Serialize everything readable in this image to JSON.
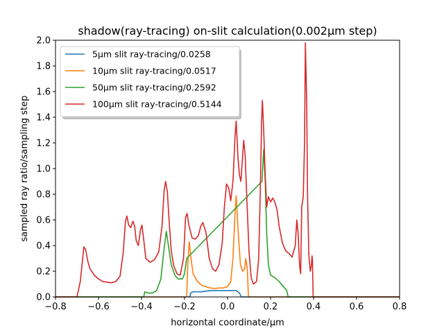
{
  "chart_data": {
    "type": "line",
    "title": "shadow(ray-tracing) on-slit calculation(0.002μm step)",
    "xlabel": "horizontal coordinate/μm",
    "ylabel": "sampled ray ratio/sampling step",
    "xlim": [
      -0.8,
      0.8
    ],
    "ylim": [
      0.0,
      2.0
    ],
    "xticks": [
      "−0.8",
      "−0.6",
      "−0.4",
      "−0.2",
      "0.0",
      "0.2",
      "0.4",
      "0.6",
      "0.8"
    ],
    "yticks": [
      "0.0",
      "0.2",
      "0.4",
      "0.6",
      "0.8",
      "1.0",
      "1.2",
      "1.4",
      "1.6",
      "1.8",
      "2.0"
    ],
    "grid": false,
    "legend_position": "upper-left",
    "series": [
      {
        "name": "5μm slit ray-tracing/0.0258",
        "color": "#1f77b4",
        "points": [
          [
            -0.8,
            0
          ],
          [
            -0.175,
            0
          ],
          [
            -0.172,
            0.03
          ],
          [
            -0.16,
            0.04
          ],
          [
            -0.12,
            0.04
          ],
          [
            -0.08,
            0.05
          ],
          [
            -0.04,
            0.05
          ],
          [
            0.0,
            0.05
          ],
          [
            0.03,
            0.05
          ],
          [
            0.04,
            0.05
          ],
          [
            0.055,
            0.03
          ],
          [
            0.065,
            0.0
          ],
          [
            0.8,
            0
          ]
        ]
      },
      {
        "name": "10μm slit ray-tracing/0.0517",
        "color": "#ff7f0e",
        "points": [
          [
            -0.8,
            0
          ],
          [
            -0.19,
            0
          ],
          [
            -0.185,
            0.25
          ],
          [
            -0.178,
            0.43
          ],
          [
            -0.17,
            0.3
          ],
          [
            -0.16,
            0.18
          ],
          [
            -0.14,
            0.12
          ],
          [
            -0.12,
            0.09
          ],
          [
            -0.1,
            0.08
          ],
          [
            -0.08,
            0.07
          ],
          [
            -0.06,
            0.065
          ],
          [
            -0.04,
            0.07
          ],
          [
            -0.02,
            0.07
          ],
          [
            0.0,
            0.08
          ],
          [
            0.015,
            0.12
          ],
          [
            0.025,
            0.3
          ],
          [
            0.035,
            0.65
          ],
          [
            0.04,
            0.79
          ],
          [
            0.05,
            0.5
          ],
          [
            0.06,
            0.25
          ],
          [
            0.07,
            0.2
          ],
          [
            0.08,
            0.22
          ],
          [
            0.085,
            0.3
          ],
          [
            0.092,
            0.22
          ],
          [
            0.097,
            0.0
          ],
          [
            0.8,
            0
          ]
        ]
      },
      {
        "name": "50μm slit ray-tracing/0.2592",
        "color": "#2ca02c",
        "points": [
          [
            -0.8,
            0
          ],
          [
            -0.39,
            0
          ],
          [
            -0.385,
            0.04
          ],
          [
            -0.37,
            0.03
          ],
          [
            -0.35,
            0.03
          ],
          [
            -0.33,
            0.05
          ],
          [
            -0.31,
            0.14
          ],
          [
            -0.295,
            0.38
          ],
          [
            -0.285,
            0.51
          ],
          [
            -0.275,
            0.4
          ],
          [
            -0.262,
            0.25
          ],
          [
            -0.245,
            0.17
          ],
          [
            -0.23,
            0.14
          ],
          [
            -0.21,
            0.14
          ],
          [
            -0.2,
            0.18
          ],
          [
            -0.19,
            0.3
          ],
          [
            0.16,
            0.9
          ],
          [
            0.168,
            1.15
          ],
          [
            0.175,
            0.9
          ],
          [
            0.182,
            0.5
          ],
          [
            0.19,
            0.25
          ],
          [
            0.2,
            0.17
          ],
          [
            0.22,
            0.15
          ],
          [
            0.24,
            0.12
          ],
          [
            0.26,
            0.08
          ],
          [
            0.275,
            0.05
          ],
          [
            0.282,
            0.0
          ],
          [
            0.8,
            0
          ]
        ]
      },
      {
        "name": "100μm slit ray-tracing/0.5144",
        "color": "#d62728",
        "points": [
          [
            -0.8,
            0
          ],
          [
            -0.7,
            0
          ],
          [
            -0.685,
            0.12
          ],
          [
            -0.675,
            0.28
          ],
          [
            -0.668,
            0.39
          ],
          [
            -0.66,
            0.37
          ],
          [
            -0.65,
            0.28
          ],
          [
            -0.64,
            0.22
          ],
          [
            -0.62,
            0.17
          ],
          [
            -0.6,
            0.14
          ],
          [
            -0.58,
            0.12
          ],
          [
            -0.56,
            0.115
          ],
          [
            -0.54,
            0.11
          ],
          [
            -0.52,
            0.12
          ],
          [
            -0.5,
            0.16
          ],
          [
            -0.485,
            0.35
          ],
          [
            -0.475,
            0.59
          ],
          [
            -0.468,
            0.63
          ],
          [
            -0.46,
            0.56
          ],
          [
            -0.45,
            0.54
          ],
          [
            -0.44,
            0.59
          ],
          [
            -0.432,
            0.55
          ],
          [
            -0.425,
            0.44
          ],
          [
            -0.415,
            0.4
          ],
          [
            -0.405,
            0.52
          ],
          [
            -0.398,
            0.56
          ],
          [
            -0.39,
            0.45
          ],
          [
            -0.38,
            0.3
          ],
          [
            -0.36,
            0.27
          ],
          [
            -0.34,
            0.29
          ],
          [
            -0.32,
            0.35
          ],
          [
            -0.305,
            0.55
          ],
          [
            -0.295,
            0.83
          ],
          [
            -0.288,
            0.9
          ],
          [
            -0.28,
            0.82
          ],
          [
            -0.272,
            0.6
          ],
          [
            -0.262,
            0.36
          ],
          [
            -0.25,
            0.24
          ],
          [
            -0.235,
            0.18
          ],
          [
            -0.22,
            0.17
          ],
          [
            -0.205,
            0.3
          ],
          [
            -0.195,
            0.62
          ],
          [
            -0.188,
            0.65
          ],
          [
            -0.18,
            0.56
          ],
          [
            -0.165,
            0.46
          ],
          [
            -0.15,
            0.45
          ],
          [
            -0.135,
            0.48
          ],
          [
            -0.125,
            0.55
          ],
          [
            -0.115,
            0.58
          ],
          [
            -0.1,
            0.5
          ],
          [
            -0.085,
            0.3
          ],
          [
            -0.07,
            0.22
          ],
          [
            -0.055,
            0.2
          ],
          [
            -0.04,
            0.25
          ],
          [
            -0.025,
            0.42
          ],
          [
            -0.015,
            0.7
          ],
          [
            -0.005,
            0.88
          ],
          [
            0.005,
            0.85
          ],
          [
            0.015,
            0.75
          ],
          [
            0.025,
            0.9
          ],
          [
            0.035,
            1.25
          ],
          [
            0.04,
            1.37
          ],
          [
            0.048,
            1.1
          ],
          [
            0.055,
            0.95
          ],
          [
            0.062,
            0.9
          ],
          [
            0.068,
            1.05
          ],
          [
            0.075,
            1.22
          ],
          [
            0.082,
            1.1
          ],
          [
            0.09,
            0.75
          ],
          [
            0.1,
            0.35
          ],
          [
            0.11,
            0.15
          ],
          [
            0.12,
            0.1
          ],
          [
            0.135,
            0.12
          ],
          [
            0.145,
            0.3
          ],
          [
            0.152,
            0.8
          ],
          [
            0.158,
            1.35
          ],
          [
            0.162,
            1.53
          ],
          [
            0.168,
            1.3
          ],
          [
            0.175,
            0.95
          ],
          [
            0.182,
            0.7
          ],
          [
            0.19,
            0.78
          ],
          [
            0.2,
            0.74
          ],
          [
            0.21,
            0.77
          ],
          [
            0.22,
            0.74
          ],
          [
            0.23,
            0.68
          ],
          [
            0.24,
            0.55
          ],
          [
            0.255,
            0.42
          ],
          [
            0.27,
            0.36
          ],
          [
            0.285,
            0.34
          ],
          [
            0.3,
            0.31
          ],
          [
            0.315,
            0.4
          ],
          [
            0.322,
            0.6
          ],
          [
            0.328,
            0.5
          ],
          [
            0.335,
            0.25
          ],
          [
            0.34,
            0.18
          ],
          [
            0.345,
            0.7
          ],
          [
            0.352,
            0.78
          ],
          [
            0.358,
            1.2
          ],
          [
            0.362,
            1.98
          ],
          [
            0.368,
            1.5
          ],
          [
            0.372,
            0.8
          ],
          [
            0.378,
            0.32
          ],
          [
            0.385,
            0.2
          ],
          [
            0.39,
            0.25
          ],
          [
            0.393,
            0.32
          ],
          [
            0.395,
            0.28
          ],
          [
            0.398,
            0.0
          ],
          [
            0.8,
            0
          ]
        ]
      }
    ]
  }
}
